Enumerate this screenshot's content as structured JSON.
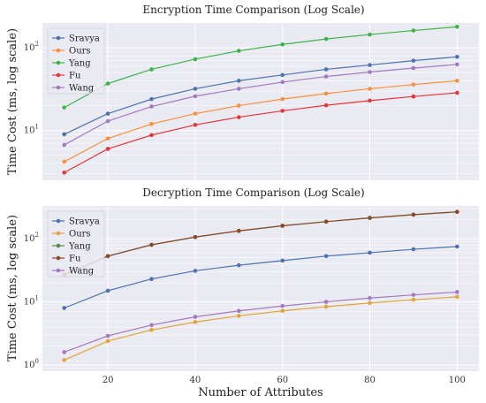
{
  "figure": {
    "xlabel": "Number of Attributes"
  },
  "chart_data": [
    {
      "type": "line",
      "title": "Encryption Time Comparison (Log Scale)",
      "ylabel": "Time Cost (ms, log scale)",
      "yscale": "log",
      "x": [
        10,
        20,
        30,
        40,
        50,
        60,
        70,
        80,
        90,
        100
      ],
      "xlim": [
        5,
        105
      ],
      "xticks": [
        20,
        40,
        60,
        80,
        100
      ],
      "ylim": [
        2.5,
        200
      ],
      "yticks": [
        {
          "value": 10,
          "base": "10",
          "exp": "1"
        },
        {
          "value": 100,
          "base": "10",
          "exp": "2"
        }
      ],
      "grid": true,
      "legend": "top-left",
      "series": [
        {
          "name": "Sravya",
          "color": "#4c72b0",
          "values": [
            9,
            16,
            24,
            32,
            40,
            47,
            55,
            62,
            70,
            78
          ]
        },
        {
          "name": "Ours",
          "color": "#fd8f3c",
          "values": [
            4.2,
            8,
            12,
            16,
            20,
            24,
            28,
            32,
            36,
            40
          ]
        },
        {
          "name": "Yang",
          "color": "#3bb44a",
          "values": [
            19,
            37,
            55,
            73,
            92,
            110,
            128,
            145,
            162,
            180
          ]
        },
        {
          "name": "Fu",
          "color": "#e8353a",
          "values": [
            3.1,
            6,
            8.8,
            11.7,
            14.5,
            17.3,
            20.2,
            23,
            25.8,
            28.6
          ]
        },
        {
          "name": "Wang",
          "color": "#a479c2",
          "values": [
            6.7,
            13,
            19.5,
            26,
            32,
            38.5,
            45,
            51,
            57,
            63
          ]
        }
      ]
    },
    {
      "type": "line",
      "title": "Decryption Time Comparison (Log Scale)",
      "ylabel": "Time Cost (ms, log scale)",
      "yscale": "log",
      "x": [
        10,
        20,
        30,
        40,
        50,
        60,
        70,
        80,
        90,
        100
      ],
      "xlim": [
        5,
        105
      ],
      "xticks": [
        20,
        40,
        60,
        80,
        100
      ],
      "ylim": [
        0.8,
        330
      ],
      "yticks": [
        {
          "value": 1,
          "base": "10",
          "exp": "0"
        },
        {
          "value": 10,
          "base": "10",
          "exp": "1"
        },
        {
          "value": 100,
          "base": "10",
          "exp": "2"
        }
      ],
      "grid": true,
      "legend": "top-left",
      "series": [
        {
          "name": "Sravya",
          "color": "#4c72b0",
          "values": [
            8,
            15,
            23,
            31,
            38,
            45,
            53,
            60,
            68,
            75
          ]
        },
        {
          "name": "Ours",
          "color": "#e0a43a",
          "values": [
            1.2,
            2.4,
            3.6,
            4.8,
            6,
            7.2,
            8.4,
            9.6,
            10.8,
            12
          ]
        },
        {
          "name": "Yang",
          "color": "#5a8a4a",
          "values": [
            27,
            53,
            80,
            106,
            133,
            160,
            186,
            213,
            240,
            266
          ]
        },
        {
          "name": "Fu",
          "color": "#8b4a2e",
          "values": [
            27,
            53,
            80,
            106,
            133,
            160,
            186,
            213,
            240,
            266
          ]
        },
        {
          "name": "Wang",
          "color": "#a479c2",
          "values": [
            1.6,
            2.9,
            4.3,
            5.8,
            7.2,
            8.6,
            10,
            11.5,
            12.9,
            14.3
          ]
        }
      ]
    }
  ]
}
